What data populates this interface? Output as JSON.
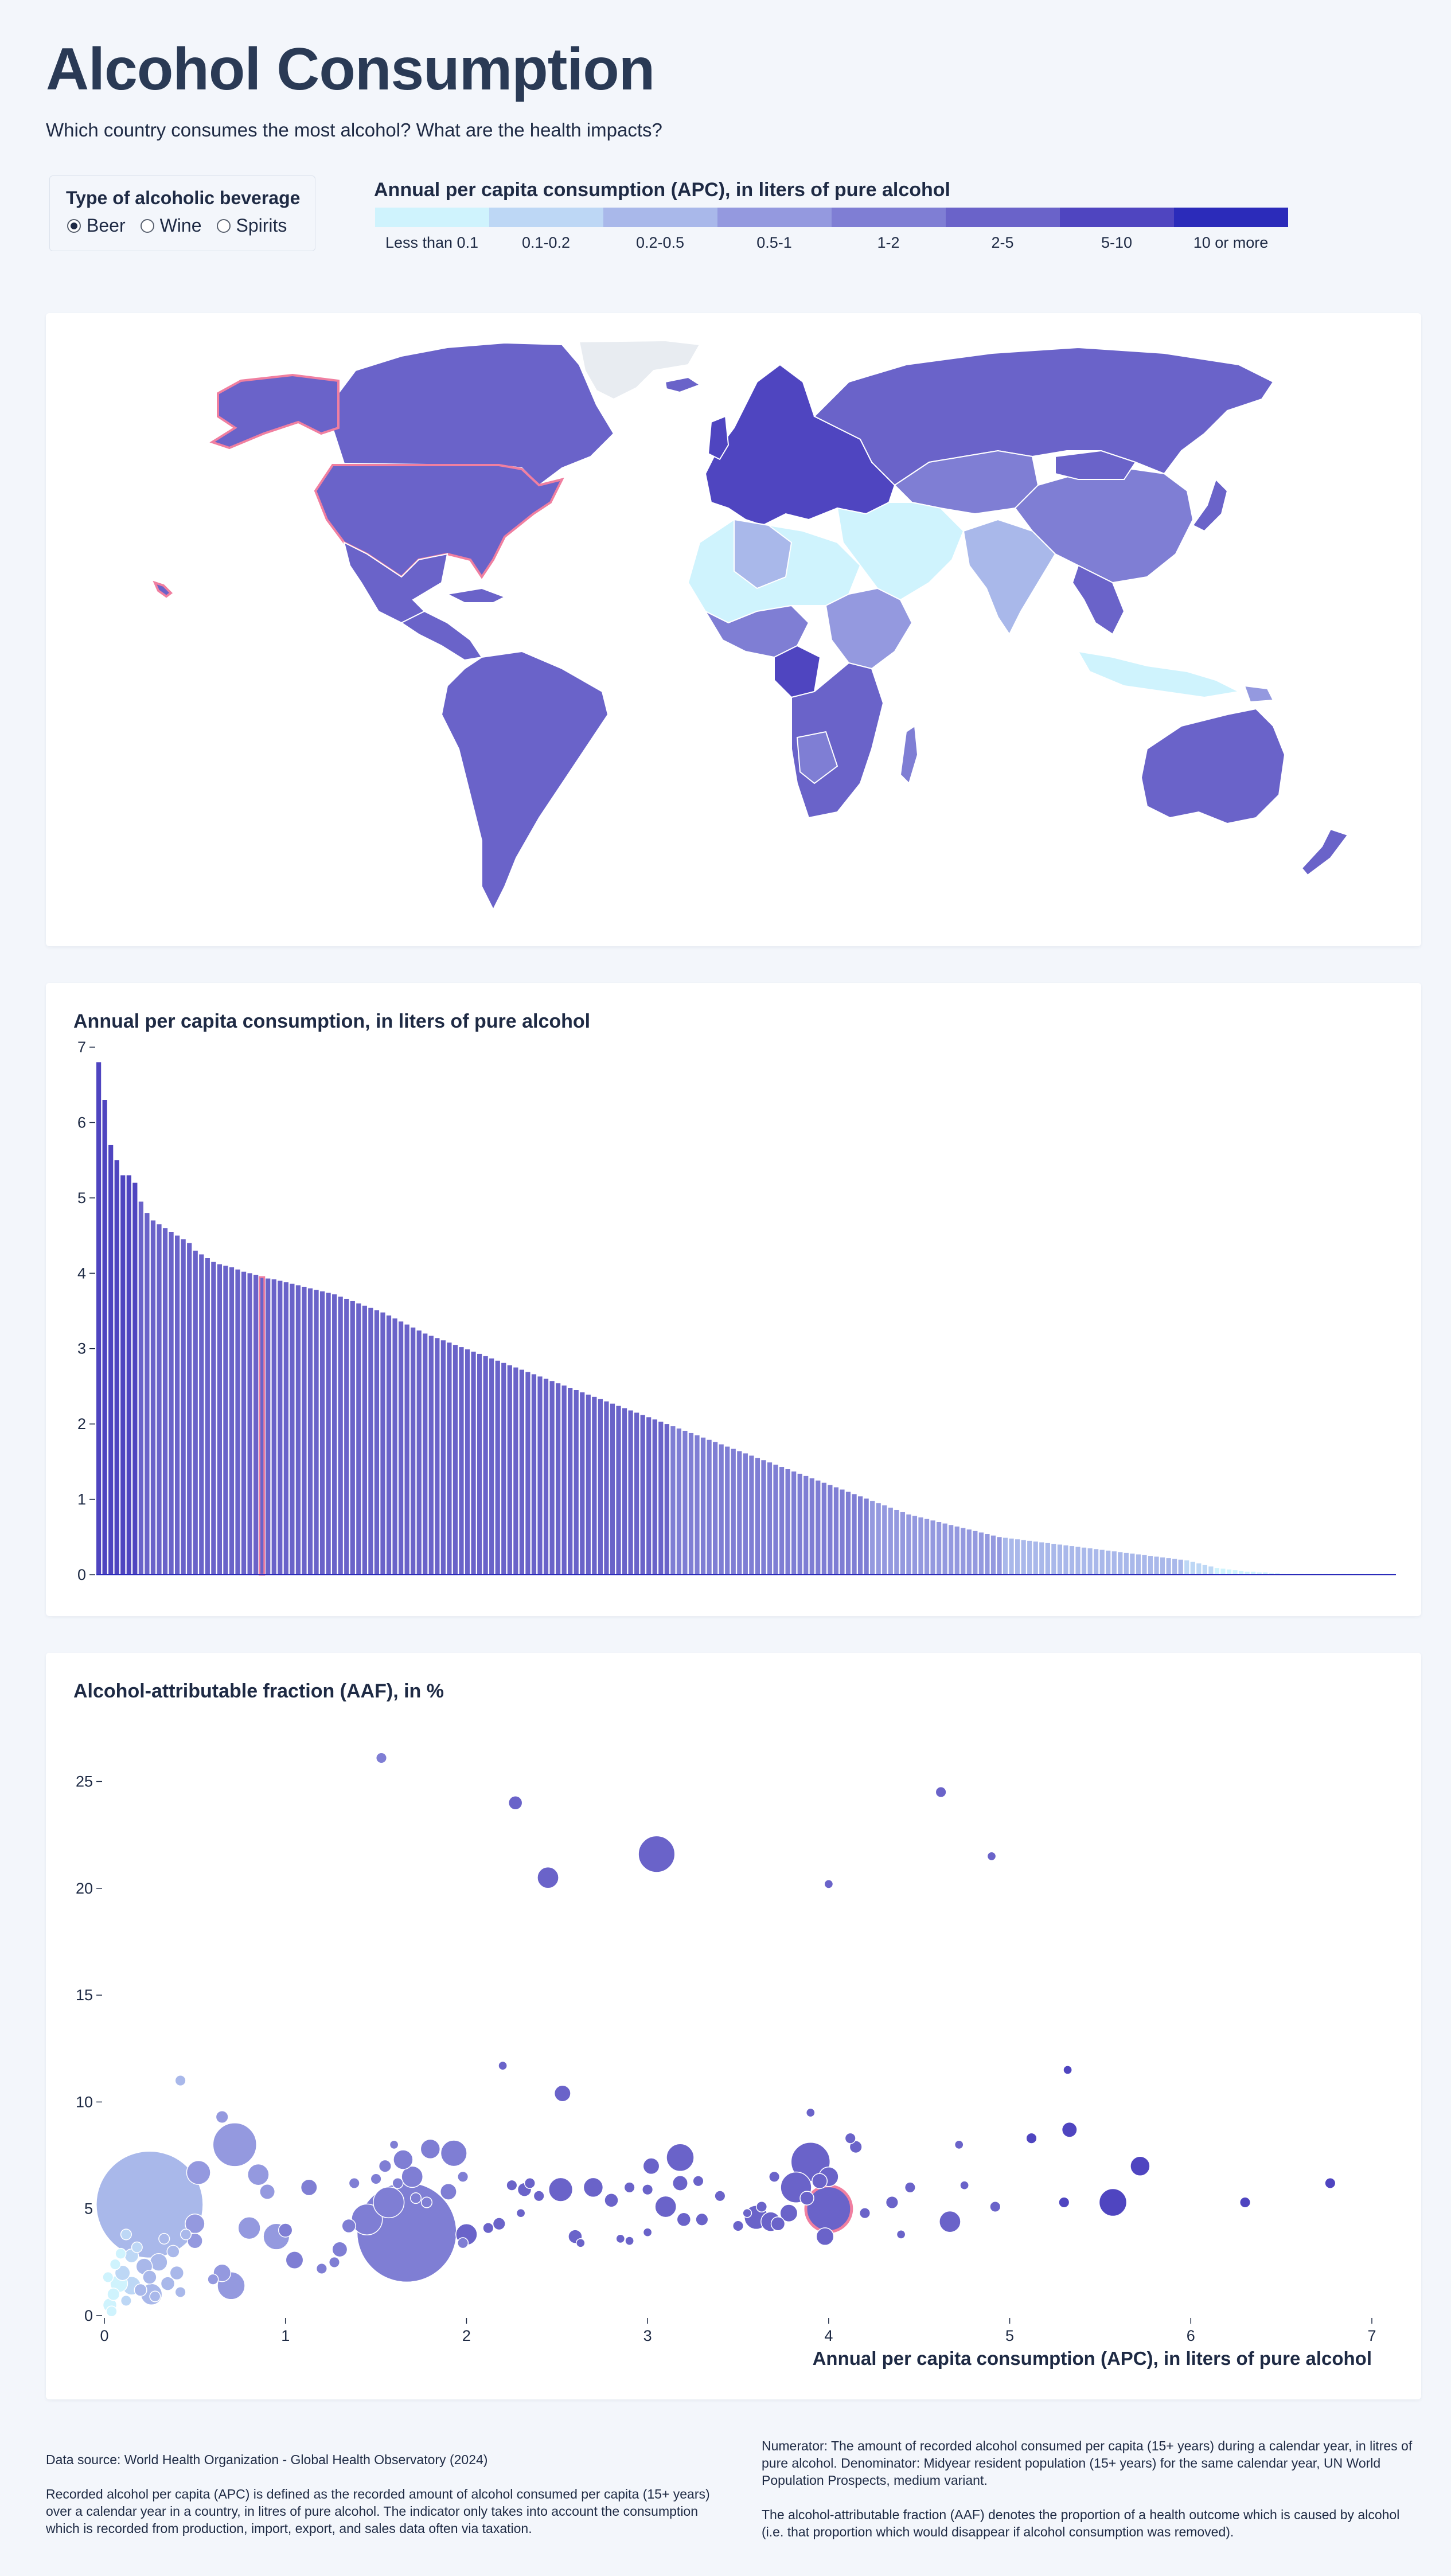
{
  "header": {
    "title": "Alcohol Consumption",
    "subtitle": "Which country consumes the most alcohol? What are the health impacts?"
  },
  "beverage_selector": {
    "title": "Type of alcoholic beverage",
    "options": [
      {
        "label": "Beer",
        "selected": true
      },
      {
        "label": "Wine",
        "selected": false
      },
      {
        "label": "Spirits",
        "selected": false
      }
    ]
  },
  "legend": {
    "title": "Annual per capita consumption (APC), in liters of pure alcohol",
    "bins": [
      {
        "label": "Less than 0.1",
        "color": "#cff3fd"
      },
      {
        "label": "0.1-0.2",
        "color": "#bdd7f5"
      },
      {
        "label": "0.2-0.5",
        "color": "#a9b8ea"
      },
      {
        "label": "0.5-1",
        "color": "#9499df"
      },
      {
        "label": "1-2",
        "color": "#7f7ed4"
      },
      {
        "label": "2-5",
        "color": "#6a63c9"
      },
      {
        "label": "5-10",
        "color": "#4f45c0"
      },
      {
        "label": "10 or more",
        "color": "#2b2bba"
      }
    ]
  },
  "map": {
    "highlight_country": "United States of America",
    "highlight_color": "#f07fa0",
    "no_data_color": "#e8ecf1"
  },
  "bar_chart": {
    "title": "Annual per capita consumption, in liters of pure alcohol"
  },
  "chart_data": [
    {
      "type": "bar",
      "title": "Annual per capita consumption, in liters of pure alcohol",
      "xlabel": "",
      "ylabel": "",
      "ylim": [
        0,
        7
      ],
      "yticks": [
        0,
        1,
        2,
        3,
        4,
        5,
        6,
        7
      ],
      "highlight_index": 27,
      "values": [
        6.8,
        6.3,
        5.7,
        5.5,
        5.3,
        5.3,
        5.2,
        4.95,
        4.8,
        4.7,
        4.65,
        4.6,
        4.55,
        4.5,
        4.45,
        4.4,
        4.3,
        4.25,
        4.2,
        4.15,
        4.12,
        4.1,
        4.08,
        4.05,
        4.02,
        4.0,
        3.98,
        3.95,
        3.93,
        3.92,
        3.9,
        3.88,
        3.86,
        3.84,
        3.82,
        3.8,
        3.78,
        3.76,
        3.74,
        3.72,
        3.69,
        3.66,
        3.63,
        3.6,
        3.57,
        3.54,
        3.51,
        3.48,
        3.44,
        3.4,
        3.36,
        3.32,
        3.28,
        3.24,
        3.2,
        3.17,
        3.14,
        3.11,
        3.08,
        3.05,
        3.02,
        2.99,
        2.96,
        2.93,
        2.9,
        2.87,
        2.84,
        2.81,
        2.78,
        2.75,
        2.72,
        2.69,
        2.66,
        2.63,
        2.6,
        2.57,
        2.54,
        2.51,
        2.48,
        2.45,
        2.42,
        2.39,
        2.36,
        2.33,
        2.3,
        2.27,
        2.24,
        2.21,
        2.18,
        2.15,
        2.12,
        2.09,
        2.06,
        2.03,
        2.0,
        1.97,
        1.94,
        1.91,
        1.88,
        1.85,
        1.82,
        1.79,
        1.76,
        1.73,
        1.7,
        1.67,
        1.64,
        1.61,
        1.58,
        1.55,
        1.52,
        1.49,
        1.46,
        1.43,
        1.4,
        1.37,
        1.34,
        1.31,
        1.28,
        1.25,
        1.22,
        1.19,
        1.16,
        1.13,
        1.1,
        1.07,
        1.04,
        1.01,
        0.98,
        0.95,
        0.92,
        0.89,
        0.86,
        0.83,
        0.8,
        0.78,
        0.76,
        0.74,
        0.72,
        0.7,
        0.68,
        0.66,
        0.64,
        0.62,
        0.6,
        0.58,
        0.56,
        0.54,
        0.52,
        0.5,
        0.49,
        0.48,
        0.47,
        0.46,
        0.45,
        0.44,
        0.43,
        0.42,
        0.41,
        0.4,
        0.39,
        0.38,
        0.37,
        0.36,
        0.35,
        0.34,
        0.33,
        0.32,
        0.31,
        0.3,
        0.29,
        0.28,
        0.27,
        0.26,
        0.25,
        0.24,
        0.23,
        0.22,
        0.21,
        0.2,
        0.19,
        0.17,
        0.15,
        0.13,
        0.11,
        0.09,
        0.08,
        0.07,
        0.06,
        0.05,
        0.04,
        0.04,
        0.03,
        0.03,
        0.02,
        0.02,
        0.01,
        0.01,
        0.01,
        0.01,
        0.01,
        0.01,
        0.01,
        0.01,
        0.01,
        0.01,
        0.01,
        0.01,
        0.01,
        0.01,
        0.01,
        0.01,
        0.01,
        0.01,
        0.01
      ]
    },
    {
      "type": "scatter",
      "title": "Alcohol-attributable fraction (AAF), in %",
      "xlabel": "Annual per capita consumption (APC), in liters of pure alcohol",
      "ylabel": "",
      "xlim": [
        0,
        7
      ],
      "ylim": [
        0,
        27
      ],
      "xticks": [
        0,
        1,
        2,
        3,
        4,
        5,
        6,
        7
      ],
      "yticks": [
        0,
        5,
        10,
        15,
        20,
        25
      ],
      "highlight_point": [
        4.0,
        5.0
      ],
      "points": [
        {
          "x": 1.53,
          "y": 26.1,
          "size": 0.3
        },
        {
          "x": 2.27,
          "y": 24.0,
          "size": 0.5
        },
        {
          "x": 2.45,
          "y": 20.5,
          "size": 1.2
        },
        {
          "x": 3.05,
          "y": 21.6,
          "size": 3.5
        },
        {
          "x": 4.0,
          "y": 20.2,
          "size": 0.2
        },
        {
          "x": 4.62,
          "y": 24.5,
          "size": 0.3
        },
        {
          "x": 4.9,
          "y": 21.5,
          "size": 0.2
        },
        {
          "x": 0.42,
          "y": 11.0,
          "size": 0.3
        },
        {
          "x": 2.2,
          "y": 11.7,
          "size": 0.2
        },
        {
          "x": 2.53,
          "y": 10.4,
          "size": 0.7
        },
        {
          "x": 3.9,
          "y": 9.5,
          "size": 0.2
        },
        {
          "x": 5.32,
          "y": 11.5,
          "size": 0.2
        },
        {
          "x": 5.33,
          "y": 8.7,
          "size": 0.6
        },
        {
          "x": 5.12,
          "y": 8.3,
          "size": 0.3
        },
        {
          "x": 4.72,
          "y": 8.0,
          "size": 0.2
        },
        {
          "x": 0.72,
          "y": 8.0,
          "size": 5.0
        },
        {
          "x": 0.65,
          "y": 9.3,
          "size": 0.4
        },
        {
          "x": 0.85,
          "y": 6.6,
          "size": 1.2
        },
        {
          "x": 0.9,
          "y": 5.8,
          "size": 0.6
        },
        {
          "x": 0.25,
          "y": 5.2,
          "size": 30.0
        },
        {
          "x": 0.52,
          "y": 6.7,
          "size": 1.5
        },
        {
          "x": 0.5,
          "y": 4.3,
          "size": 1.0
        },
        {
          "x": 0.5,
          "y": 3.5,
          "size": 0.6
        },
        {
          "x": 0.45,
          "y": 3.8,
          "size": 0.3
        },
        {
          "x": 0.65,
          "y": 2.0,
          "size": 0.8
        },
        {
          "x": 0.7,
          "y": 1.4,
          "size": 2.0
        },
        {
          "x": 0.6,
          "y": 1.7,
          "size": 0.3
        },
        {
          "x": 0.8,
          "y": 4.1,
          "size": 1.3
        },
        {
          "x": 0.95,
          "y": 3.7,
          "size": 1.8
        },
        {
          "x": 1.0,
          "y": 4.0,
          "size": 0.5
        },
        {
          "x": 1.05,
          "y": 2.6,
          "size": 0.8
        },
        {
          "x": 1.13,
          "y": 6.0,
          "size": 0.7
        },
        {
          "x": 1.2,
          "y": 2.2,
          "size": 0.3
        },
        {
          "x": 1.3,
          "y": 3.1,
          "size": 0.6
        },
        {
          "x": 1.27,
          "y": 2.5,
          "size": 0.3
        },
        {
          "x": 1.35,
          "y": 4.2,
          "size": 0.5
        },
        {
          "x": 1.45,
          "y": 4.5,
          "size": 2.5
        },
        {
          "x": 1.38,
          "y": 6.2,
          "size": 0.3
        },
        {
          "x": 1.5,
          "y": 6.4,
          "size": 0.3
        },
        {
          "x": 1.57,
          "y": 5.3,
          "size": 2.5
        },
        {
          "x": 1.55,
          "y": 7.0,
          "size": 0.4
        },
        {
          "x": 1.65,
          "y": 7.3,
          "size": 1.0
        },
        {
          "x": 1.7,
          "y": 6.5,
          "size": 1.2
        },
        {
          "x": 1.62,
          "y": 6.2,
          "size": 0.3
        },
        {
          "x": 1.6,
          "y": 8.0,
          "size": 0.2
        },
        {
          "x": 1.72,
          "y": 5.5,
          "size": 0.3
        },
        {
          "x": 1.67,
          "y": 3.9,
          "size": 26.0
        },
        {
          "x": 1.8,
          "y": 7.8,
          "size": 1.0
        },
        {
          "x": 1.78,
          "y": 5.3,
          "size": 0.3
        },
        {
          "x": 1.9,
          "y": 5.8,
          "size": 0.7
        },
        {
          "x": 1.93,
          "y": 7.6,
          "size": 1.8
        },
        {
          "x": 1.98,
          "y": 6.5,
          "size": 0.3
        },
        {
          "x": 2.0,
          "y": 3.8,
          "size": 1.2
        },
        {
          "x": 1.98,
          "y": 3.4,
          "size": 0.3
        },
        {
          "x": 2.12,
          "y": 4.1,
          "size": 0.3
        },
        {
          "x": 2.18,
          "y": 4.3,
          "size": 0.4
        },
        {
          "x": 2.25,
          "y": 6.1,
          "size": 0.3
        },
        {
          "x": 2.32,
          "y": 5.9,
          "size": 0.5
        },
        {
          "x": 2.35,
          "y": 6.2,
          "size": 0.3
        },
        {
          "x": 2.3,
          "y": 4.8,
          "size": 0.2
        },
        {
          "x": 2.4,
          "y": 5.6,
          "size": 0.3
        },
        {
          "x": 2.52,
          "y": 5.9,
          "size": 1.5
        },
        {
          "x": 2.6,
          "y": 3.7,
          "size": 0.5
        },
        {
          "x": 2.63,
          "y": 3.4,
          "size": 0.2
        },
        {
          "x": 2.7,
          "y": 6.0,
          "size": 1.0
        },
        {
          "x": 2.8,
          "y": 5.4,
          "size": 0.5
        },
        {
          "x": 2.9,
          "y": 6.0,
          "size": 0.3
        },
        {
          "x": 2.85,
          "y": 3.6,
          "size": 0.2
        },
        {
          "x": 2.9,
          "y": 3.5,
          "size": 0.2
        },
        {
          "x": 3.0,
          "y": 5.9,
          "size": 0.3
        },
        {
          "x": 3.02,
          "y": 7.0,
          "size": 0.7
        },
        {
          "x": 3.0,
          "y": 3.9,
          "size": 0.2
        },
        {
          "x": 3.1,
          "y": 5.1,
          "size": 1.2
        },
        {
          "x": 3.18,
          "y": 7.4,
          "size": 2.0
        },
        {
          "x": 3.18,
          "y": 6.2,
          "size": 0.6
        },
        {
          "x": 3.28,
          "y": 6.3,
          "size": 0.3
        },
        {
          "x": 3.2,
          "y": 4.5,
          "size": 0.5
        },
        {
          "x": 3.3,
          "y": 4.5,
          "size": 0.4
        },
        {
          "x": 3.4,
          "y": 5.6,
          "size": 0.3
        },
        {
          "x": 3.5,
          "y": 4.2,
          "size": 0.3
        },
        {
          "x": 3.55,
          "y": 4.8,
          "size": 0.2
        },
        {
          "x": 3.6,
          "y": 4.6,
          "size": 1.5
        },
        {
          "x": 3.68,
          "y": 4.4,
          "size": 1.0
        },
        {
          "x": 3.63,
          "y": 5.1,
          "size": 0.3
        },
        {
          "x": 3.7,
          "y": 6.5,
          "size": 0.3
        },
        {
          "x": 3.72,
          "y": 4.3,
          "size": 0.5
        },
        {
          "x": 3.78,
          "y": 4.8,
          "size": 0.8
        },
        {
          "x": 3.82,
          "y": 6.0,
          "size": 2.5
        },
        {
          "x": 3.88,
          "y": 5.5,
          "size": 0.5
        },
        {
          "x": 3.9,
          "y": 7.2,
          "size": 4.0
        },
        {
          "x": 3.95,
          "y": 6.3,
          "size": 0.6
        },
        {
          "x": 4.0,
          "y": 6.5,
          "size": 1.0
        },
        {
          "x": 3.98,
          "y": 3.7,
          "size": 0.8
        },
        {
          "x": 4.12,
          "y": 8.3,
          "size": 0.3
        },
        {
          "x": 4.15,
          "y": 7.9,
          "size": 0.4
        },
        {
          "x": 4.2,
          "y": 4.8,
          "size": 0.3
        },
        {
          "x": 4.35,
          "y": 5.3,
          "size": 0.4
        },
        {
          "x": 4.4,
          "y": 3.8,
          "size": 0.2
        },
        {
          "x": 4.45,
          "y": 6.0,
          "size": 0.3
        },
        {
          "x": 4.67,
          "y": 4.4,
          "size": 1.2
        },
        {
          "x": 4.75,
          "y": 6.1,
          "size": 0.2
        },
        {
          "x": 4.92,
          "y": 5.1,
          "size": 0.3
        },
        {
          "x": 5.3,
          "y": 5.3,
          "size": 0.3
        },
        {
          "x": 5.57,
          "y": 5.3,
          "size": 2.0
        },
        {
          "x": 5.72,
          "y": 7.0,
          "size": 1.0
        },
        {
          "x": 6.3,
          "y": 5.3,
          "size": 0.3
        },
        {
          "x": 6.77,
          "y": 6.2,
          "size": 0.3
        },
        {
          "x": 4.0,
          "y": 5.0,
          "size": 5.5
        },
        {
          "x": 0.03,
          "y": 0.5,
          "size": 0.5
        },
        {
          "x": 0.05,
          "y": 1.0,
          "size": 0.4
        },
        {
          "x": 0.08,
          "y": 1.5,
          "size": 0.8
        },
        {
          "x": 0.1,
          "y": 2.0,
          "size": 0.6
        },
        {
          "x": 0.12,
          "y": 0.7,
          "size": 0.3
        },
        {
          "x": 0.02,
          "y": 1.8,
          "size": 0.3
        },
        {
          "x": 0.15,
          "y": 2.8,
          "size": 0.5
        },
        {
          "x": 0.06,
          "y": 2.4,
          "size": 0.3
        },
        {
          "x": 0.2,
          "y": 1.2,
          "size": 0.4
        },
        {
          "x": 0.22,
          "y": 2.3,
          "size": 0.7
        },
        {
          "x": 0.18,
          "y": 3.2,
          "size": 0.3
        },
        {
          "x": 0.25,
          "y": 1.8,
          "size": 0.5
        },
        {
          "x": 0.3,
          "y": 2.5,
          "size": 0.8
        },
        {
          "x": 0.28,
          "y": 0.9,
          "size": 0.3
        },
        {
          "x": 0.35,
          "y": 1.5,
          "size": 0.5
        },
        {
          "x": 0.38,
          "y": 3.0,
          "size": 0.4
        },
        {
          "x": 0.33,
          "y": 3.6,
          "size": 0.3
        },
        {
          "x": 0.4,
          "y": 2.0,
          "size": 0.5
        },
        {
          "x": 0.12,
          "y": 3.8,
          "size": 0.3
        },
        {
          "x": 0.04,
          "y": 0.2,
          "size": 0.3
        },
        {
          "x": 0.15,
          "y": 1.4,
          "size": 0.9
        },
        {
          "x": 0.09,
          "y": 2.9,
          "size": 0.3
        },
        {
          "x": 0.26,
          "y": 1.0,
          "size": 1.2
        },
        {
          "x": 0.42,
          "y": 1.1,
          "size": 0.3
        }
      ]
    }
  ],
  "bubble_chart": {
    "title": "Alcohol-attributable fraction (AAF), in %",
    "x_axis_label": "Annual per capita consumption (APC), in liters of pure alcohol"
  },
  "footer": {
    "data_source": "Data source: World Health Organization - Global Health Observatory (2024)",
    "apc_definition": "Recorded alcohol per capita (APC) is defined as the recorded amount of alcohol consumed per capita (15+ years) over a calendar year in a country, in litres of pure alcohol. The indicator only takes into account the consumption which is recorded from production, import, export, and sales data often via taxation.",
    "numerator_denominator": "Numerator: The amount of recorded alcohol consumed per capita (15+ years) during a calendar year, in litres of pure alcohol. Denominator: Midyear resident population (15+ years) for the same calendar year, UN World Population Prospects, medium variant.",
    "aaf_definition": "The alcohol-attributable fraction (AAF) denotes the proportion of a health outcome which is caused by alcohol (i.e. that proportion which would disappear if alcohol consumption was removed)."
  }
}
